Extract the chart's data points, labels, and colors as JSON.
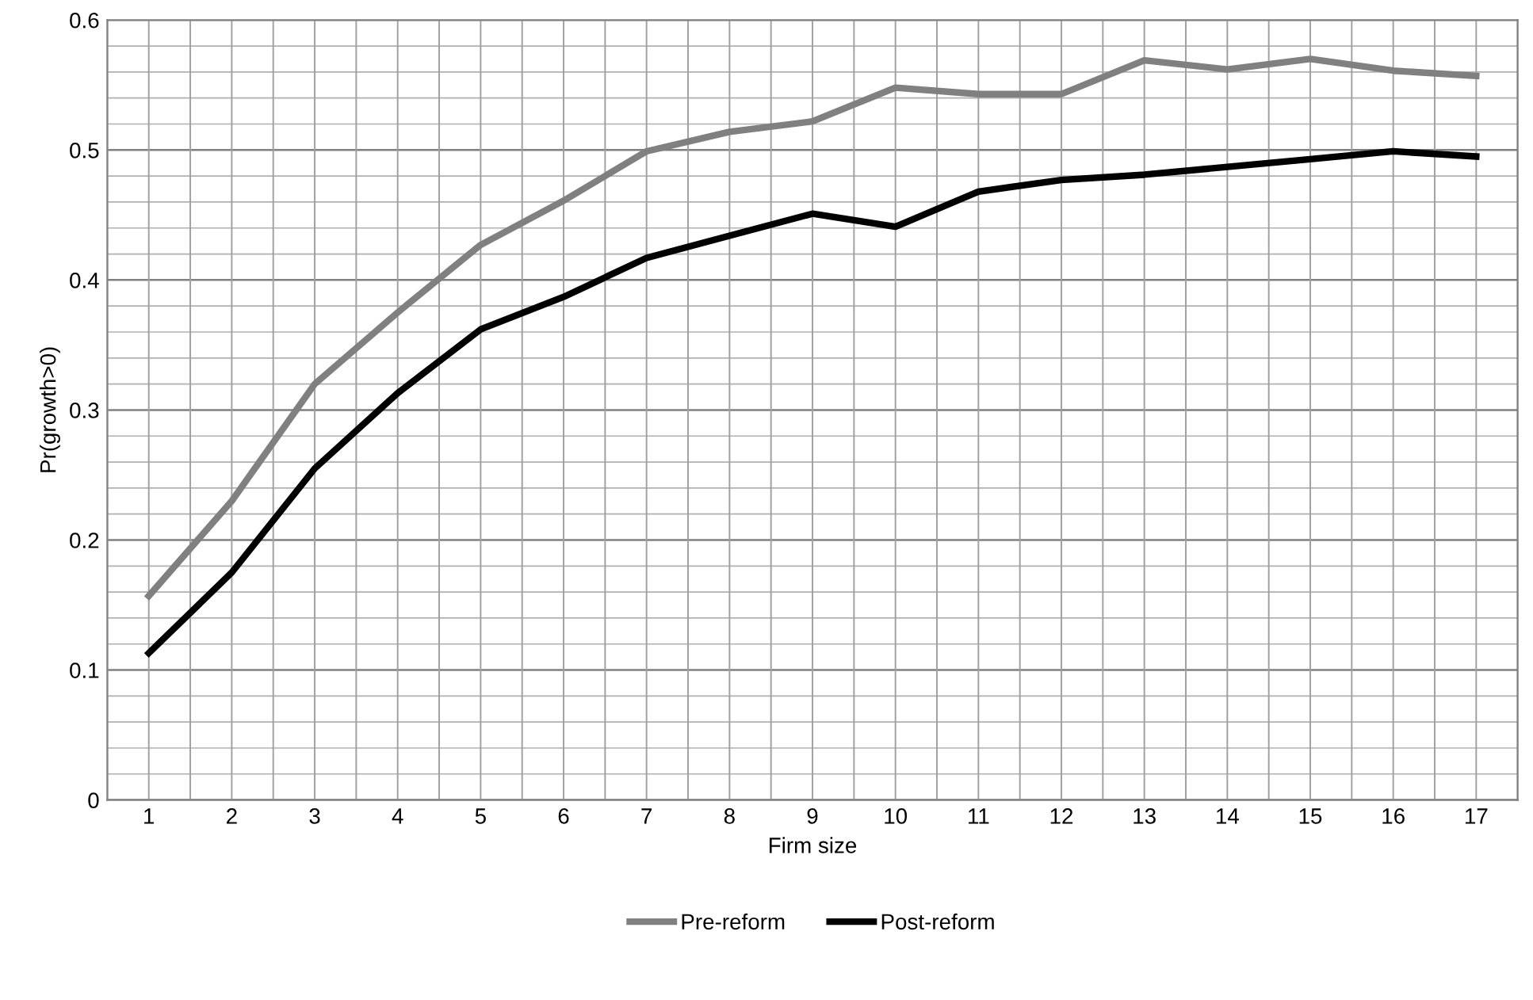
{
  "chart_data": {
    "type": "line",
    "xlabel": "Firm size",
    "ylabel": "Pr(growth>0)",
    "categories": [
      "1",
      "2",
      "3",
      "4",
      "5",
      "6",
      "7",
      "8",
      "9",
      "10",
      "11",
      "12",
      "13",
      "14",
      "15",
      "16",
      "17"
    ],
    "series": [
      {
        "name": "Pre-reform",
        "color": "#808080",
        "values": [
          0.157,
          0.23,
          0.32,
          0.375,
          0.427,
          0.461,
          0.499,
          0.514,
          0.522,
          0.548,
          0.543,
          0.543,
          0.569,
          0.562,
          0.57,
          0.561,
          0.557
        ]
      },
      {
        "name": "Post-reform",
        "color": "#000000",
        "values": [
          0.113,
          0.175,
          0.255,
          0.313,
          0.362,
          0.387,
          0.417,
          0.434,
          0.451,
          0.441,
          0.468,
          0.477,
          0.481,
          0.487,
          0.493,
          0.499,
          0.495
        ]
      }
    ],
    "ylim": [
      0,
      0.6
    ],
    "yticks": [
      {
        "value": 0,
        "label": "0"
      },
      0.1,
      0.2,
      0.3,
      0.4,
      0.5,
      0.6
    ],
    "grid": true,
    "legend": "bottom",
    "marker": "none",
    "line_style": "solid"
  }
}
